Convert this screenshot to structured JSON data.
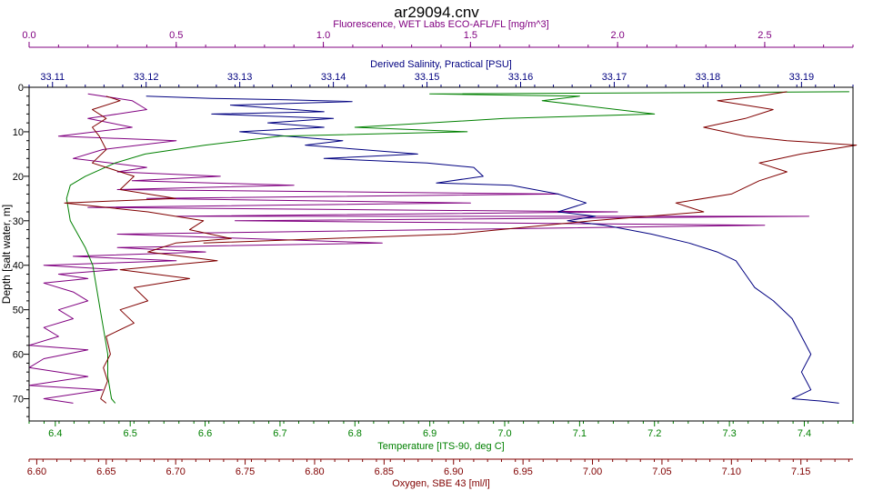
{
  "chart_data": {
    "type": "line",
    "title": "ar29094.cnv",
    "grid": false,
    "legend": "none",
    "y_axis": {
      "label": "Depth [salt water, m]",
      "range": [
        0,
        75
      ],
      "ticks": [
        0,
        10,
        20,
        30,
        40,
        50,
        60,
        70
      ],
      "inverted": true,
      "color": "#000000"
    },
    "x_axes": [
      {
        "id": "fluorescence",
        "label": "Fluorescence, WET Labs ECO-AFL/FL [mg/m^3]",
        "position": "top-outer",
        "color": "#800080",
        "range": [
          0.0,
          2.8
        ],
        "ticks": [
          0.0,
          0.5,
          1.0,
          1.5,
          2.0,
          2.5
        ],
        "tick_labels": [
          "0.0",
          "0.5",
          "1.0",
          "1.5",
          "2.0",
          "2.5"
        ]
      },
      {
        "id": "salinity",
        "label": "Derived Salinity, Practical [PSU]",
        "position": "top-inner",
        "color": "#000080",
        "range": [
          33.1075,
          33.1955
        ],
        "ticks": [
          33.11,
          33.12,
          33.13,
          33.14,
          33.15,
          33.16,
          33.17,
          33.18,
          33.19
        ],
        "tick_labels": [
          "33.11",
          "33.12",
          "33.13",
          "33.14",
          "33.15",
          "33.16",
          "33.17",
          "33.18",
          "33.19"
        ]
      },
      {
        "id": "temperature",
        "label": "Temperature [ITS-90, deg C]",
        "position": "bottom-inner",
        "color": "#008000",
        "range": [
          6.365,
          7.465
        ],
        "ticks": [
          6.4,
          6.5,
          6.6,
          6.7,
          6.8,
          6.9,
          7.0,
          7.1,
          7.2,
          7.3,
          7.4
        ],
        "tick_labels": [
          "6.4",
          "6.5",
          "6.6",
          "6.7",
          "6.8",
          "6.9",
          "7.0",
          "7.1",
          "7.2",
          "7.3",
          "7.4"
        ]
      },
      {
        "id": "oxygen",
        "label": "Oxygen, SBE 43 [ml/l]",
        "position": "bottom-outer",
        "color": "#800000",
        "range": [
          6.5945,
          7.1875
        ],
        "ticks": [
          6.6,
          6.65,
          6.7,
          6.75,
          6.8,
          6.85,
          6.9,
          6.95,
          7.0,
          7.05,
          7.1,
          7.15
        ],
        "tick_labels": [
          "6.60",
          "6.65",
          "6.70",
          "6.75",
          "6.80",
          "6.85",
          "6.90",
          "6.95",
          "7.00",
          "7.05",
          "7.10",
          "7.15"
        ]
      }
    ],
    "series": [
      {
        "axis": "fluorescence",
        "color": "#800080",
        "points": [
          [
            0.2,
            1.5
          ],
          [
            0.35,
            3
          ],
          [
            0.4,
            5
          ],
          [
            0.2,
            7
          ],
          [
            0.35,
            9
          ],
          [
            0.1,
            11
          ],
          [
            0.5,
            12
          ],
          [
            0.25,
            14
          ],
          [
            0.15,
            16
          ],
          [
            0.4,
            18
          ],
          [
            0.3,
            19
          ],
          [
            0.65,
            20
          ],
          [
            0.35,
            21
          ],
          [
            0.9,
            22
          ],
          [
            0.3,
            23
          ],
          [
            1.8,
            24
          ],
          [
            0.4,
            25
          ],
          [
            1.5,
            26
          ],
          [
            0.2,
            27
          ],
          [
            2.0,
            28
          ],
          [
            0.5,
            29
          ],
          [
            2.65,
            29
          ],
          [
            0.7,
            30
          ],
          [
            2.5,
            31
          ],
          [
            0.3,
            33
          ],
          [
            1.2,
            35
          ],
          [
            0.3,
            36
          ],
          [
            0.6,
            37
          ],
          [
            0.15,
            38
          ],
          [
            0.5,
            39
          ],
          [
            0.05,
            40
          ],
          [
            0.3,
            41
          ],
          [
            0.1,
            42
          ],
          [
            0.2,
            43
          ],
          [
            0.05,
            44
          ],
          [
            0.15,
            46
          ],
          [
            0.2,
            48
          ],
          [
            0.1,
            50
          ],
          [
            0.15,
            52
          ],
          [
            0.05,
            54
          ],
          [
            0.1,
            56
          ],
          [
            0.0,
            58
          ],
          [
            0.2,
            59
          ],
          [
            0.05,
            61
          ],
          [
            0.0,
            63
          ],
          [
            0.2,
            65
          ],
          [
            0.0,
            67
          ],
          [
            0.25,
            68
          ],
          [
            0.05,
            70
          ],
          [
            0.15,
            71
          ]
        ]
      },
      {
        "axis": "salinity",
        "color": "#000080",
        "points": [
          [
            33.12,
            2
          ],
          [
            33.127,
            2.5
          ],
          [
            33.135,
            2.8
          ],
          [
            33.142,
            3.2
          ],
          [
            33.129,
            4
          ],
          [
            33.139,
            5.5
          ],
          [
            33.127,
            6
          ],
          [
            33.14,
            7
          ],
          [
            33.133,
            8
          ],
          [
            33.139,
            9
          ],
          [
            33.13,
            10
          ],
          [
            33.135,
            11
          ],
          [
            33.141,
            12
          ],
          [
            33.137,
            13
          ],
          [
            33.143,
            14
          ],
          [
            33.149,
            15
          ],
          [
            33.139,
            16
          ],
          [
            33.15,
            17
          ],
          [
            33.155,
            18
          ],
          [
            33.156,
            20
          ],
          [
            33.151,
            21.5
          ],
          [
            33.159,
            22
          ],
          [
            33.164,
            24
          ],
          [
            33.167,
            26
          ],
          [
            33.164,
            28
          ],
          [
            33.168,
            29
          ],
          [
            33.165,
            30
          ],
          [
            33.169,
            31
          ],
          [
            33.174,
            33
          ],
          [
            33.178,
            35
          ],
          [
            33.181,
            37
          ],
          [
            33.183,
            39
          ],
          [
            33.184,
            42
          ],
          [
            33.185,
            45
          ],
          [
            33.187,
            48
          ],
          [
            33.189,
            52
          ],
          [
            33.19,
            56
          ],
          [
            33.191,
            60
          ],
          [
            33.19,
            64
          ],
          [
            33.191,
            68
          ],
          [
            33.189,
            70
          ],
          [
            33.192,
            70.5
          ],
          [
            33.194,
            71
          ]
        ]
      },
      {
        "axis": "temperature",
        "color": "#008000",
        "points": [
          [
            7.46,
            1
          ],
          [
            7.25,
            1.2
          ],
          [
            6.9,
            1.5
          ],
          [
            7.1,
            2
          ],
          [
            7.05,
            3
          ],
          [
            7.2,
            6
          ],
          [
            7.0,
            7
          ],
          [
            6.8,
            9
          ],
          [
            6.95,
            10
          ],
          [
            6.7,
            11
          ],
          [
            6.6,
            13
          ],
          [
            6.52,
            15
          ],
          [
            6.48,
            17
          ],
          [
            6.44,
            20
          ],
          [
            6.42,
            22
          ],
          [
            6.415,
            25
          ],
          [
            6.42,
            30
          ],
          [
            6.43,
            33
          ],
          [
            6.44,
            36
          ],
          [
            6.45,
            40
          ],
          [
            6.455,
            45
          ],
          [
            6.46,
            50
          ],
          [
            6.465,
            55
          ],
          [
            6.47,
            60
          ],
          [
            6.47,
            65
          ],
          [
            6.475,
            70
          ],
          [
            6.48,
            71
          ]
        ]
      },
      {
        "axis": "oxygen",
        "color": "#800000",
        "points": [
          [
            6.65,
            2
          ],
          [
            6.66,
            3
          ],
          [
            6.64,
            5
          ],
          [
            6.65,
            7
          ],
          [
            6.64,
            9
          ],
          [
            6.645,
            11
          ],
          [
            6.65,
            14
          ],
          [
            6.64,
            17
          ],
          [
            6.67,
            20
          ],
          [
            6.66,
            23
          ],
          [
            6.7,
            25
          ],
          [
            6.62,
            26
          ],
          [
            6.68,
            28
          ],
          [
            6.72,
            30
          ],
          [
            6.71,
            32
          ],
          [
            6.74,
            34
          ],
          [
            6.7,
            35
          ],
          [
            6.68,
            37
          ],
          [
            6.73,
            39
          ],
          [
            6.66,
            41
          ],
          [
            6.71,
            43
          ],
          [
            6.67,
            45
          ],
          [
            6.68,
            48
          ],
          [
            6.66,
            50
          ],
          [
            6.67,
            53
          ],
          [
            6.65,
            56
          ],
          [
            6.653,
            60
          ],
          [
            6.648,
            63
          ],
          [
            6.651,
            66
          ],
          [
            6.646,
            70
          ],
          [
            6.65,
            71
          ]
        ]
      },
      {
        "axis": "oxygen",
        "color": "#800000",
        "points": [
          [
            6.72,
            35
          ],
          [
            6.9,
            33
          ],
          [
            7.0,
            30
          ],
          [
            7.08,
            28
          ],
          [
            7.06,
            26
          ],
          [
            7.1,
            24
          ],
          [
            7.12,
            21
          ],
          [
            7.14,
            19
          ],
          [
            7.12,
            17
          ],
          [
            7.15,
            15
          ],
          [
            7.19,
            13
          ],
          [
            7.14,
            12
          ],
          [
            7.11,
            11
          ],
          [
            7.08,
            9
          ],
          [
            7.11,
            7
          ],
          [
            7.13,
            5
          ],
          [
            7.09,
            3
          ],
          [
            7.12,
            2
          ],
          [
            7.14,
            1
          ]
        ]
      }
    ]
  }
}
